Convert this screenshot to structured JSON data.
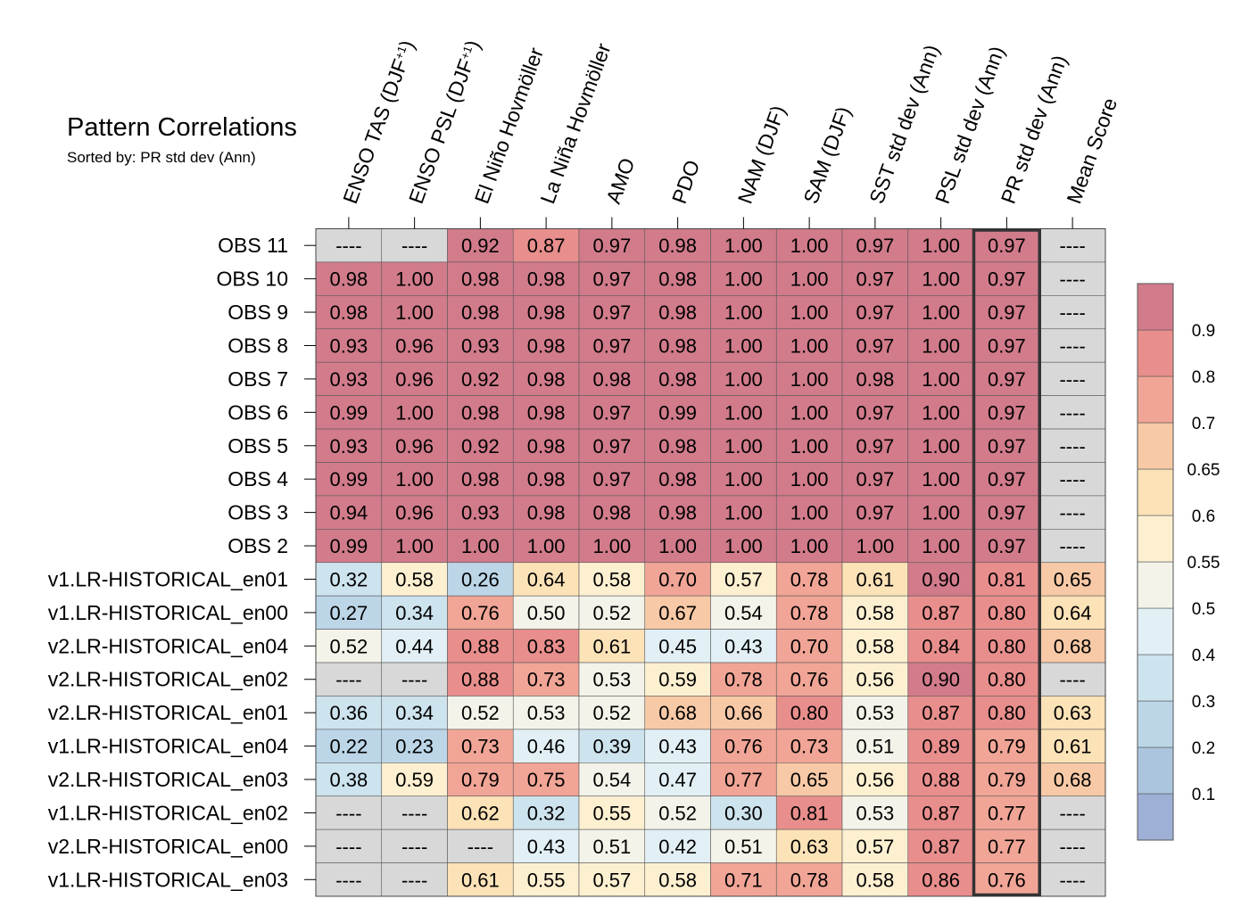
{
  "title": "Pattern Correlations",
  "subtitle": "Sorted by: PR std dev (Ann)",
  "chart_data": {
    "type": "heatmap",
    "title": "Pattern Correlations",
    "subtitle": "Sorted by: PR std dev (Ann)",
    "columns": [
      "ENSO TAS (DJF+1)",
      "ENSO PSL (DJF+1)",
      "El Niño Hovmöller",
      "La Niña Hovmöller",
      "AMO",
      "PDO",
      "NAM (DJF)",
      "SAM (DJF)",
      "SST std dev (Ann)",
      "PSL std dev (Ann)",
      "PR std dev (Ann)",
      "Mean Score"
    ],
    "rows": [
      "OBS 11",
      "OBS 10",
      "OBS 9",
      "OBS 8",
      "OBS 7",
      "OBS 6",
      "OBS 5",
      "OBS 4",
      "OBS 3",
      "OBS 2",
      "v1.LR-HISTORICAL_en01",
      "v1.LR-HISTORICAL_en00",
      "v2.LR-HISTORICAL_en04",
      "v2.LR-HISTORICAL_en02",
      "v2.LR-HISTORICAL_en01",
      "v1.LR-HISTORICAL_en04",
      "v2.LR-HISTORICAL_en03",
      "v1.LR-HISTORICAL_en02",
      "v2.LR-HISTORICAL_en00",
      "v1.LR-HISTORICAL_en03"
    ],
    "values": [
      [
        null,
        null,
        0.92,
        0.87,
        0.97,
        0.98,
        1.0,
        1.0,
        0.97,
        1.0,
        0.97,
        null
      ],
      [
        0.98,
        1.0,
        0.98,
        0.98,
        0.97,
        0.98,
        1.0,
        1.0,
        0.97,
        1.0,
        0.97,
        null
      ],
      [
        0.98,
        1.0,
        0.98,
        0.98,
        0.97,
        0.98,
        1.0,
        1.0,
        0.97,
        1.0,
        0.97,
        null
      ],
      [
        0.93,
        0.96,
        0.93,
        0.98,
        0.97,
        0.98,
        1.0,
        1.0,
        0.97,
        1.0,
        0.97,
        null
      ],
      [
        0.93,
        0.96,
        0.92,
        0.98,
        0.98,
        0.98,
        1.0,
        1.0,
        0.98,
        1.0,
        0.97,
        null
      ],
      [
        0.99,
        1.0,
        0.98,
        0.98,
        0.97,
        0.99,
        1.0,
        1.0,
        0.97,
        1.0,
        0.97,
        null
      ],
      [
        0.93,
        0.96,
        0.92,
        0.98,
        0.97,
        0.98,
        1.0,
        1.0,
        0.97,
        1.0,
        0.97,
        null
      ],
      [
        0.99,
        1.0,
        0.98,
        0.98,
        0.97,
        0.98,
        1.0,
        1.0,
        0.97,
        1.0,
        0.97,
        null
      ],
      [
        0.94,
        0.96,
        0.93,
        0.98,
        0.98,
        0.98,
        1.0,
        1.0,
        0.97,
        1.0,
        0.97,
        null
      ],
      [
        0.99,
        1.0,
        1.0,
        1.0,
        1.0,
        1.0,
        1.0,
        1.0,
        1.0,
        1.0,
        0.97,
        null
      ],
      [
        0.32,
        0.58,
        0.26,
        0.64,
        0.58,
        0.7,
        0.57,
        0.78,
        0.61,
        0.9,
        0.81,
        0.65
      ],
      [
        0.27,
        0.34,
        0.76,
        0.5,
        0.52,
        0.67,
        0.54,
        0.78,
        0.58,
        0.87,
        0.8,
        0.64
      ],
      [
        0.52,
        0.44,
        0.88,
        0.83,
        0.61,
        0.45,
        0.43,
        0.7,
        0.58,
        0.84,
        0.8,
        0.68
      ],
      [
        null,
        null,
        0.88,
        0.73,
        0.53,
        0.59,
        0.78,
        0.76,
        0.56,
        0.9,
        0.8,
        null
      ],
      [
        0.36,
        0.34,
        0.52,
        0.53,
        0.52,
        0.68,
        0.66,
        0.8,
        0.53,
        0.87,
        0.8,
        0.63
      ],
      [
        0.22,
        0.23,
        0.73,
        0.46,
        0.39,
        0.43,
        0.76,
        0.73,
        0.51,
        0.89,
        0.79,
        0.61
      ],
      [
        0.38,
        0.59,
        0.79,
        0.75,
        0.54,
        0.47,
        0.77,
        0.65,
        0.56,
        0.88,
        0.79,
        0.68
      ],
      [
        null,
        null,
        0.62,
        0.32,
        0.55,
        0.52,
        0.3,
        0.81,
        0.53,
        0.87,
        0.77,
        null
      ],
      [
        null,
        null,
        null,
        0.43,
        0.51,
        0.42,
        0.51,
        0.63,
        0.57,
        0.87,
        0.77,
        null
      ],
      [
        null,
        null,
        0.61,
        0.55,
        0.57,
        0.58,
        0.71,
        0.78,
        0.58,
        0.86,
        0.76,
        null
      ]
    ],
    "missing_label": "----",
    "highlight_column": "PR std dev (Ann)",
    "colorbar": {
      "ticks": [
        "0.1",
        "0.2",
        "0.3",
        "0.4",
        "0.5",
        "0.55",
        "0.6",
        "0.65",
        "0.7",
        "0.8",
        "0.9"
      ],
      "bounds": [
        0.1,
        0.2,
        0.3,
        0.4,
        0.5,
        0.55,
        0.6,
        0.65,
        0.7,
        0.8,
        0.9
      ],
      "colors": [
        "#9eb0d6",
        "#abc5df",
        "#bcd6e8",
        "#cde3ee",
        "#e2f0f5",
        "#f3f3e9",
        "#fdf0d1",
        "#fce2b7",
        "#f8c9a6",
        "#f1a596",
        "#e88e8c",
        "#d17b8b"
      ]
    },
    "missing_color": "#d8d8d8"
  }
}
